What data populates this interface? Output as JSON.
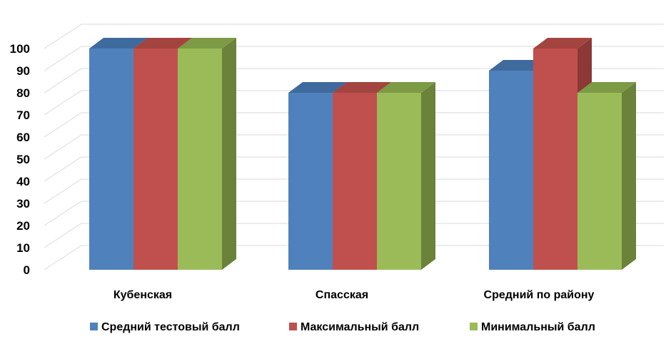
{
  "chart_data": {
    "type": "bar",
    "categories": [
      "Кубенская",
      "Спасская",
      "Средний по району"
    ],
    "series": [
      {
        "name": "Средний тестовый балл",
        "values": [
          100,
          80,
          90
        ],
        "color": "#4f81bd",
        "top": "#3f6a9e",
        "side": "#365c87"
      },
      {
        "name": "Максимальный балл",
        "values": [
          100,
          80,
          100
        ],
        "color": "#c0504d",
        "top": "#a34441",
        "side": "#8b3836"
      },
      {
        "name": "Минимальный балл",
        "values": [
          100,
          80,
          80
        ],
        "color": "#9bbb59",
        "top": "#7d9a45",
        "side": "#6a8239"
      }
    ],
    "yticks": [
      0,
      10,
      20,
      30,
      40,
      50,
      60,
      70,
      80,
      90,
      100
    ],
    "ylim": [
      0,
      100
    ],
    "grid": true,
    "legend": "bottom",
    "title": "",
    "xlabel": "",
    "ylabel": ""
  }
}
